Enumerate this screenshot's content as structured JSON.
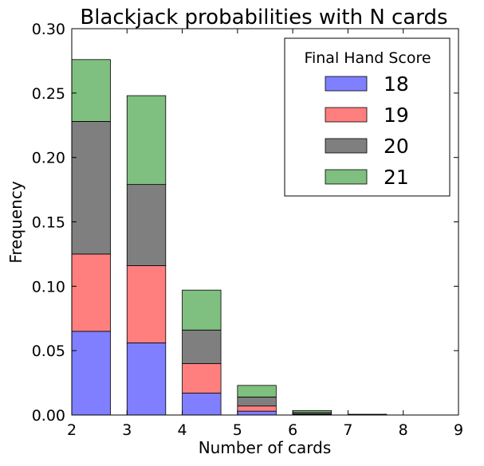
{
  "chart_data": {
    "type": "bar",
    "stacked": true,
    "title": "Blackjack probabilities with N cards",
    "xlabel": "Number of cards",
    "ylabel": "Frequency",
    "xlim": [
      2,
      9
    ],
    "ylim": [
      0,
      0.3
    ],
    "xticks": [
      "2",
      "3",
      "4",
      "5",
      "6",
      "7",
      "8",
      "9"
    ],
    "yticks": [
      "0.00",
      "0.05",
      "0.10",
      "0.15",
      "0.20",
      "0.25",
      "0.30"
    ],
    "x": [
      2,
      3,
      4,
      5,
      6,
      7
    ],
    "bar_width": 0.7,
    "grid": false,
    "legend": {
      "title": "Final Hand Score",
      "position": "top-right"
    },
    "series": [
      {
        "name": "18",
        "color": "#7f7fff",
        "values": [
          0.065,
          0.056,
          0.017,
          0.003,
          0.0003,
          0.0
        ]
      },
      {
        "name": "19",
        "color": "#ff7f7f",
        "values": [
          0.06,
          0.06,
          0.023,
          0.004,
          0.0005,
          0.0001
        ]
      },
      {
        "name": "20",
        "color": "#7f7f7f",
        "values": [
          0.103,
          0.063,
          0.026,
          0.007,
          0.0012,
          0.0002
        ]
      },
      {
        "name": "21",
        "color": "#7fbf7f",
        "values": [
          0.048,
          0.069,
          0.031,
          0.009,
          0.0015,
          0.0003
        ]
      }
    ]
  }
}
